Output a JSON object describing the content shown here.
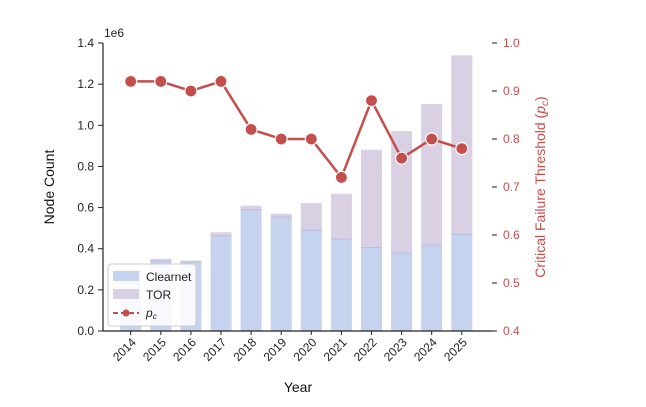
{
  "chart_data": {
    "type": "bar",
    "subtype": "stacked bar with line on secondary axis",
    "categories": [
      "2014",
      "2015",
      "2016",
      "2017",
      "2018",
      "2019",
      "2020",
      "2021",
      "2022",
      "2023",
      "2024",
      "2025"
    ],
    "series": [
      {
        "name": "Clearnet",
        "axis": "left",
        "kind": "bar",
        "values": [
          0.29,
          0.34,
          0.335,
          0.463,
          0.59,
          0.554,
          0.49,
          0.447,
          0.406,
          0.379,
          0.418,
          0.47
        ]
      },
      {
        "name": "TOR",
        "axis": "left",
        "kind": "bar",
        "values": [
          0.01,
          0.011,
          0.007,
          0.017,
          0.019,
          0.016,
          0.132,
          0.22,
          0.475,
          0.593,
          0.685,
          0.87
        ]
      },
      {
        "name": "p_c",
        "axis": "right",
        "kind": "line",
        "values": [
          0.92,
          0.92,
          0.9,
          0.92,
          0.82,
          0.8,
          0.8,
          0.72,
          0.88,
          0.76,
          0.8,
          0.78
        ]
      }
    ],
    "xlabel": "Year",
    "ylabel": "Node Count",
    "y_offset_label": "1e6",
    "ylim": [
      0,
      1.4
    ],
    "yticks": [
      "0.0",
      "0.2",
      "0.4",
      "0.6",
      "0.8",
      "1.0",
      "1.2",
      "1.4"
    ],
    "y2label_prefix": "Critical Failure Threshold (",
    "y2label_symbol": "p",
    "y2label_sub": "c",
    "y2label_suffix": ")",
    "y2lim": [
      0.4,
      1.0
    ],
    "y2ticks": [
      "0.4",
      "0.5",
      "0.6",
      "0.7",
      "0.8",
      "0.9",
      "1.0"
    ],
    "legend": {
      "placement": "lower-left",
      "entries": [
        "Clearnet",
        "TOR",
        "p"
      ],
      "pc_sub": "c"
    },
    "grid": false,
    "colors": {
      "clearnet": "#c5d3ee",
      "tor": "#d9d0e4",
      "line": "#c44e4b"
    }
  }
}
